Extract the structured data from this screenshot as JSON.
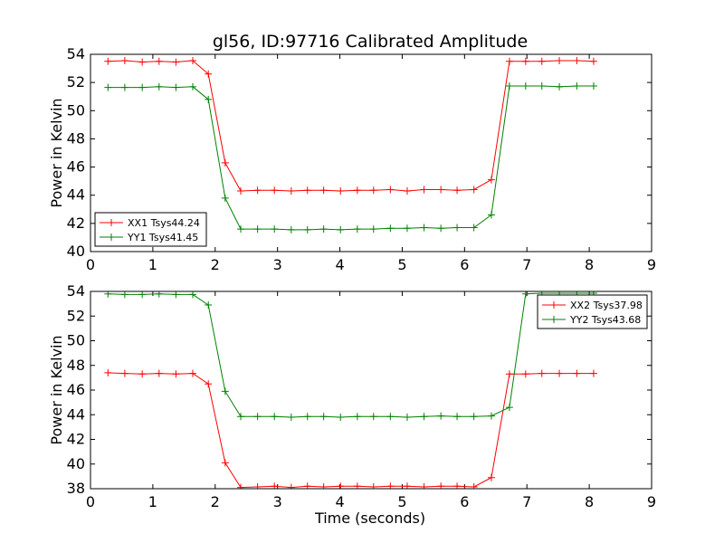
{
  "figure": {
    "title": "gl56, ID:97716 Calibrated Amplitude",
    "xlabel": "Time (seconds)"
  },
  "chart_data": [
    {
      "type": "line",
      "title": "gl56, ID:97716 Calibrated Amplitude",
      "xlabel": "",
      "ylabel": "Power in Kelvin",
      "xlim": [
        0,
        9
      ],
      "ylim": [
        40,
        54
      ],
      "xticks": [
        0,
        1,
        2,
        3,
        4,
        5,
        6,
        7,
        8,
        9
      ],
      "yticks": [
        40,
        42,
        44,
        46,
        48,
        50,
        52,
        54
      ],
      "grid": false,
      "legend_position": "lower-left",
      "x": [
        0.28,
        0.55,
        0.83,
        1.1,
        1.37,
        1.64,
        1.89,
        2.16,
        2.41,
        2.68,
        2.95,
        3.22,
        3.48,
        3.74,
        4.01,
        4.28,
        4.54,
        4.81,
        5.08,
        5.35,
        5.62,
        5.88,
        6.15,
        6.43,
        6.72,
        6.98,
        7.24,
        7.52,
        7.8,
        8.07
      ],
      "series": [
        {
          "name": "XX1 Tsys44.24",
          "color": "#ff0000",
          "values": [
            53.5,
            53.55,
            53.45,
            53.5,
            53.45,
            53.55,
            52.6,
            46.3,
            44.3,
            44.35,
            44.35,
            44.3,
            44.35,
            44.35,
            44.3,
            44.35,
            44.35,
            44.4,
            44.3,
            44.4,
            44.4,
            44.35,
            44.4,
            45.1,
            53.5,
            53.5,
            53.5,
            53.55,
            53.55,
            53.5
          ]
        },
        {
          "name": "YY1 Tsys41.45",
          "color": "#008000",
          "values": [
            51.65,
            51.65,
            51.65,
            51.7,
            51.65,
            51.7,
            50.8,
            43.8,
            41.6,
            41.6,
            41.6,
            41.55,
            41.55,
            41.6,
            41.55,
            41.6,
            41.6,
            41.65,
            41.65,
            41.7,
            41.65,
            41.7,
            41.7,
            42.6,
            51.75,
            51.75,
            51.75,
            51.7,
            51.75,
            51.75
          ]
        }
      ]
    },
    {
      "type": "line",
      "title": "",
      "xlabel": "Time (seconds)",
      "ylabel": "Power in Kelvin",
      "xlim": [
        0,
        9
      ],
      "ylim": [
        38,
        54
      ],
      "xticks": [
        0,
        1,
        2,
        3,
        4,
        5,
        6,
        7,
        8,
        9
      ],
      "yticks": [
        38,
        40,
        42,
        44,
        46,
        48,
        50,
        52,
        54
      ],
      "grid": false,
      "legend_position": "top-right",
      "x": [
        0.28,
        0.55,
        0.83,
        1.1,
        1.37,
        1.64,
        1.89,
        2.16,
        2.41,
        2.68,
        2.95,
        3.22,
        3.48,
        3.74,
        4.01,
        4.28,
        4.54,
        4.81,
        5.08,
        5.35,
        5.62,
        5.88,
        6.15,
        6.43,
        6.72,
        6.98,
        7.24,
        7.52,
        7.8,
        8.07
      ],
      "series": [
        {
          "name": "XX2 Tsys37.98",
          "color": "#ff0000",
          "values": [
            47.4,
            47.35,
            47.3,
            47.35,
            47.3,
            47.35,
            46.5,
            40.1,
            38.1,
            38.15,
            38.2,
            38.1,
            38.2,
            38.15,
            38.2,
            38.2,
            38.15,
            38.2,
            38.2,
            38.15,
            38.2,
            38.2,
            38.15,
            38.9,
            47.3,
            47.3,
            47.35,
            47.35,
            47.35,
            47.35
          ]
        },
        {
          "name": "YY2 Tsys43.68",
          "color": "#008000",
          "values": [
            53.8,
            53.75,
            53.75,
            53.8,
            53.75,
            53.75,
            52.9,
            45.9,
            43.85,
            43.85,
            43.85,
            43.8,
            43.85,
            43.85,
            43.8,
            43.85,
            43.85,
            43.85,
            43.8,
            43.85,
            43.9,
            43.85,
            43.85,
            43.9,
            44.6,
            53.8,
            53.85,
            53.85,
            53.85,
            53.85
          ]
        }
      ]
    }
  ]
}
